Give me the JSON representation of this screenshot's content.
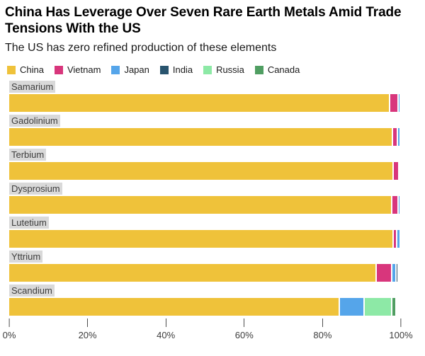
{
  "header": {
    "title_lines": [
      "China Has Leverage Over Seven Rare Earth Metals Amid Trade",
      "Tensions With the US"
    ],
    "subtitle": "The US has zero refined production of these elements"
  },
  "legend": {
    "items": [
      {
        "label": "China",
        "color": "#EFC23A"
      },
      {
        "label": "Vietnam",
        "color": "#D8367C"
      },
      {
        "label": "Japan",
        "color": "#55A5EA"
      },
      {
        "label": "India",
        "color": "#29546E"
      },
      {
        "label": "Russia",
        "color": "#8DE9A6"
      },
      {
        "label": "Canada",
        "color": "#509E62"
      }
    ]
  },
  "chart_data": {
    "type": "bar",
    "orientation": "horizontal",
    "stacked": true,
    "title": "China Has Leverage Over Seven Rare Earth Metals Amid Trade Tensions With the US",
    "subtitle": "The US has zero refined production of these elements",
    "categories": [
      "Samarium",
      "Gadolinium",
      "Terbium",
      "Dysprosium",
      "Lutetium",
      "Yttrium",
      "Scandium"
    ],
    "series": [
      {
        "name": "China",
        "color": "#EFC23A",
        "values": [
          96.9,
          97.6,
          97.9,
          97.5,
          97.9,
          93.4,
          84.0
        ]
      },
      {
        "name": "Vietnam",
        "color": "#D8367C",
        "values": [
          2.2,
          1.4,
          1.4,
          1.6,
          0.9,
          4.0,
          0
        ]
      },
      {
        "name": "Japan",
        "color": "#55A5EA",
        "values": [
          0.6,
          0.6,
          0.3,
          0.5,
          0.9,
          1.1,
          6.5
        ]
      },
      {
        "name": "India",
        "color": "#29546E",
        "values": [
          0,
          0,
          0,
          0,
          0,
          0.6,
          0
        ]
      },
      {
        "name": "Russia",
        "color": "#8DE9A6",
        "values": [
          0,
          0,
          0,
          0,
          0,
          0,
          7.0
        ]
      },
      {
        "name": "Canada",
        "color": "#509E62",
        "values": [
          0,
          0,
          0,
          0,
          0,
          0,
          1.0
        ]
      }
    ],
    "xlim": [
      0,
      100
    ],
    "xtick_labels": [
      "0%",
      "20%",
      "40%",
      "60%",
      "80%",
      "100%"
    ],
    "grid": false,
    "legend_position": "top"
  }
}
